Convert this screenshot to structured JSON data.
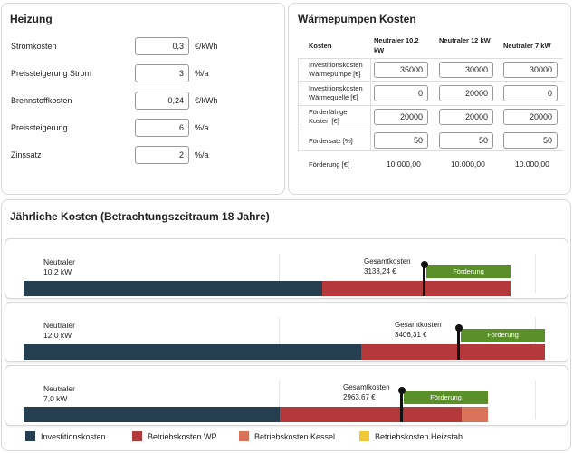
{
  "heizung": {
    "title": "Heizung",
    "fields": [
      {
        "label": "Stromkosten",
        "value": "0,3",
        "unit": "€/kWh"
      },
      {
        "label": "Preissteigerung Strom",
        "value": "3",
        "unit": "%/a"
      },
      {
        "label": "Brennstoffkosten",
        "value": "0,24",
        "unit": "€/kWh"
      },
      {
        "label": "Preissteigerung",
        "value": "6",
        "unit": "%/a"
      },
      {
        "label": "Zinssatz",
        "value": "2",
        "unit": "%/a"
      }
    ]
  },
  "waermepumpen": {
    "title": "Wärmepumpen Kosten",
    "col_header_kosten": "Kosten",
    "columns": [
      "Neutraler 10,2 kW",
      "Neutraler 12 kW",
      "Neutraler 7 kW"
    ],
    "rows": [
      {
        "label": "Investitionskosten Wärmepumpe [€]",
        "values": [
          "35000",
          "30000",
          "30000"
        ]
      },
      {
        "label": "Investitionskosten Wärmequelle [€]",
        "values": [
          "0",
          "20000",
          "0"
        ]
      },
      {
        "label": "Förderfähige Kosten [€]",
        "values": [
          "20000",
          "20000",
          "20000"
        ]
      },
      {
        "label": "Fördersatz [%]",
        "values": [
          "50",
          "50",
          "50"
        ]
      }
    ],
    "foerderung_label": "Förderung [€]",
    "foerderung_values": [
      "10.000,00",
      "10.000,00",
      "10.000,00"
    ]
  },
  "jaehrlich": {
    "title": "Jährliche Kosten (Betrachtungszeitraum 18 Jahre)",
    "gesamtkosten_label": "Gesamtkosten",
    "foerderung_label": "Förderung",
    "systems": [
      {
        "name_line1": "Neutraler",
        "name_line2": "10,2 kW",
        "gesamtkosten": "3133,24 €"
      },
      {
        "name_line1": "Neutraler",
        "name_line2": "12,0 kW",
        "gesamtkosten": "3406,31 €"
      },
      {
        "name_line1": "Neutraler",
        "name_line2": "7,0 kW",
        "gesamtkosten": "2963,67 €"
      }
    ]
  },
  "legend": [
    {
      "label": "Investitionskosten",
      "color": "#253f50"
    },
    {
      "label": "Betriebskosten WP",
      "color": "#b3393a"
    },
    {
      "label": "Betriebskosten Kessel",
      "color": "#d9735a"
    },
    {
      "label": "Betriebskosten Heizstab",
      "color": "#f0c838"
    }
  ]
}
